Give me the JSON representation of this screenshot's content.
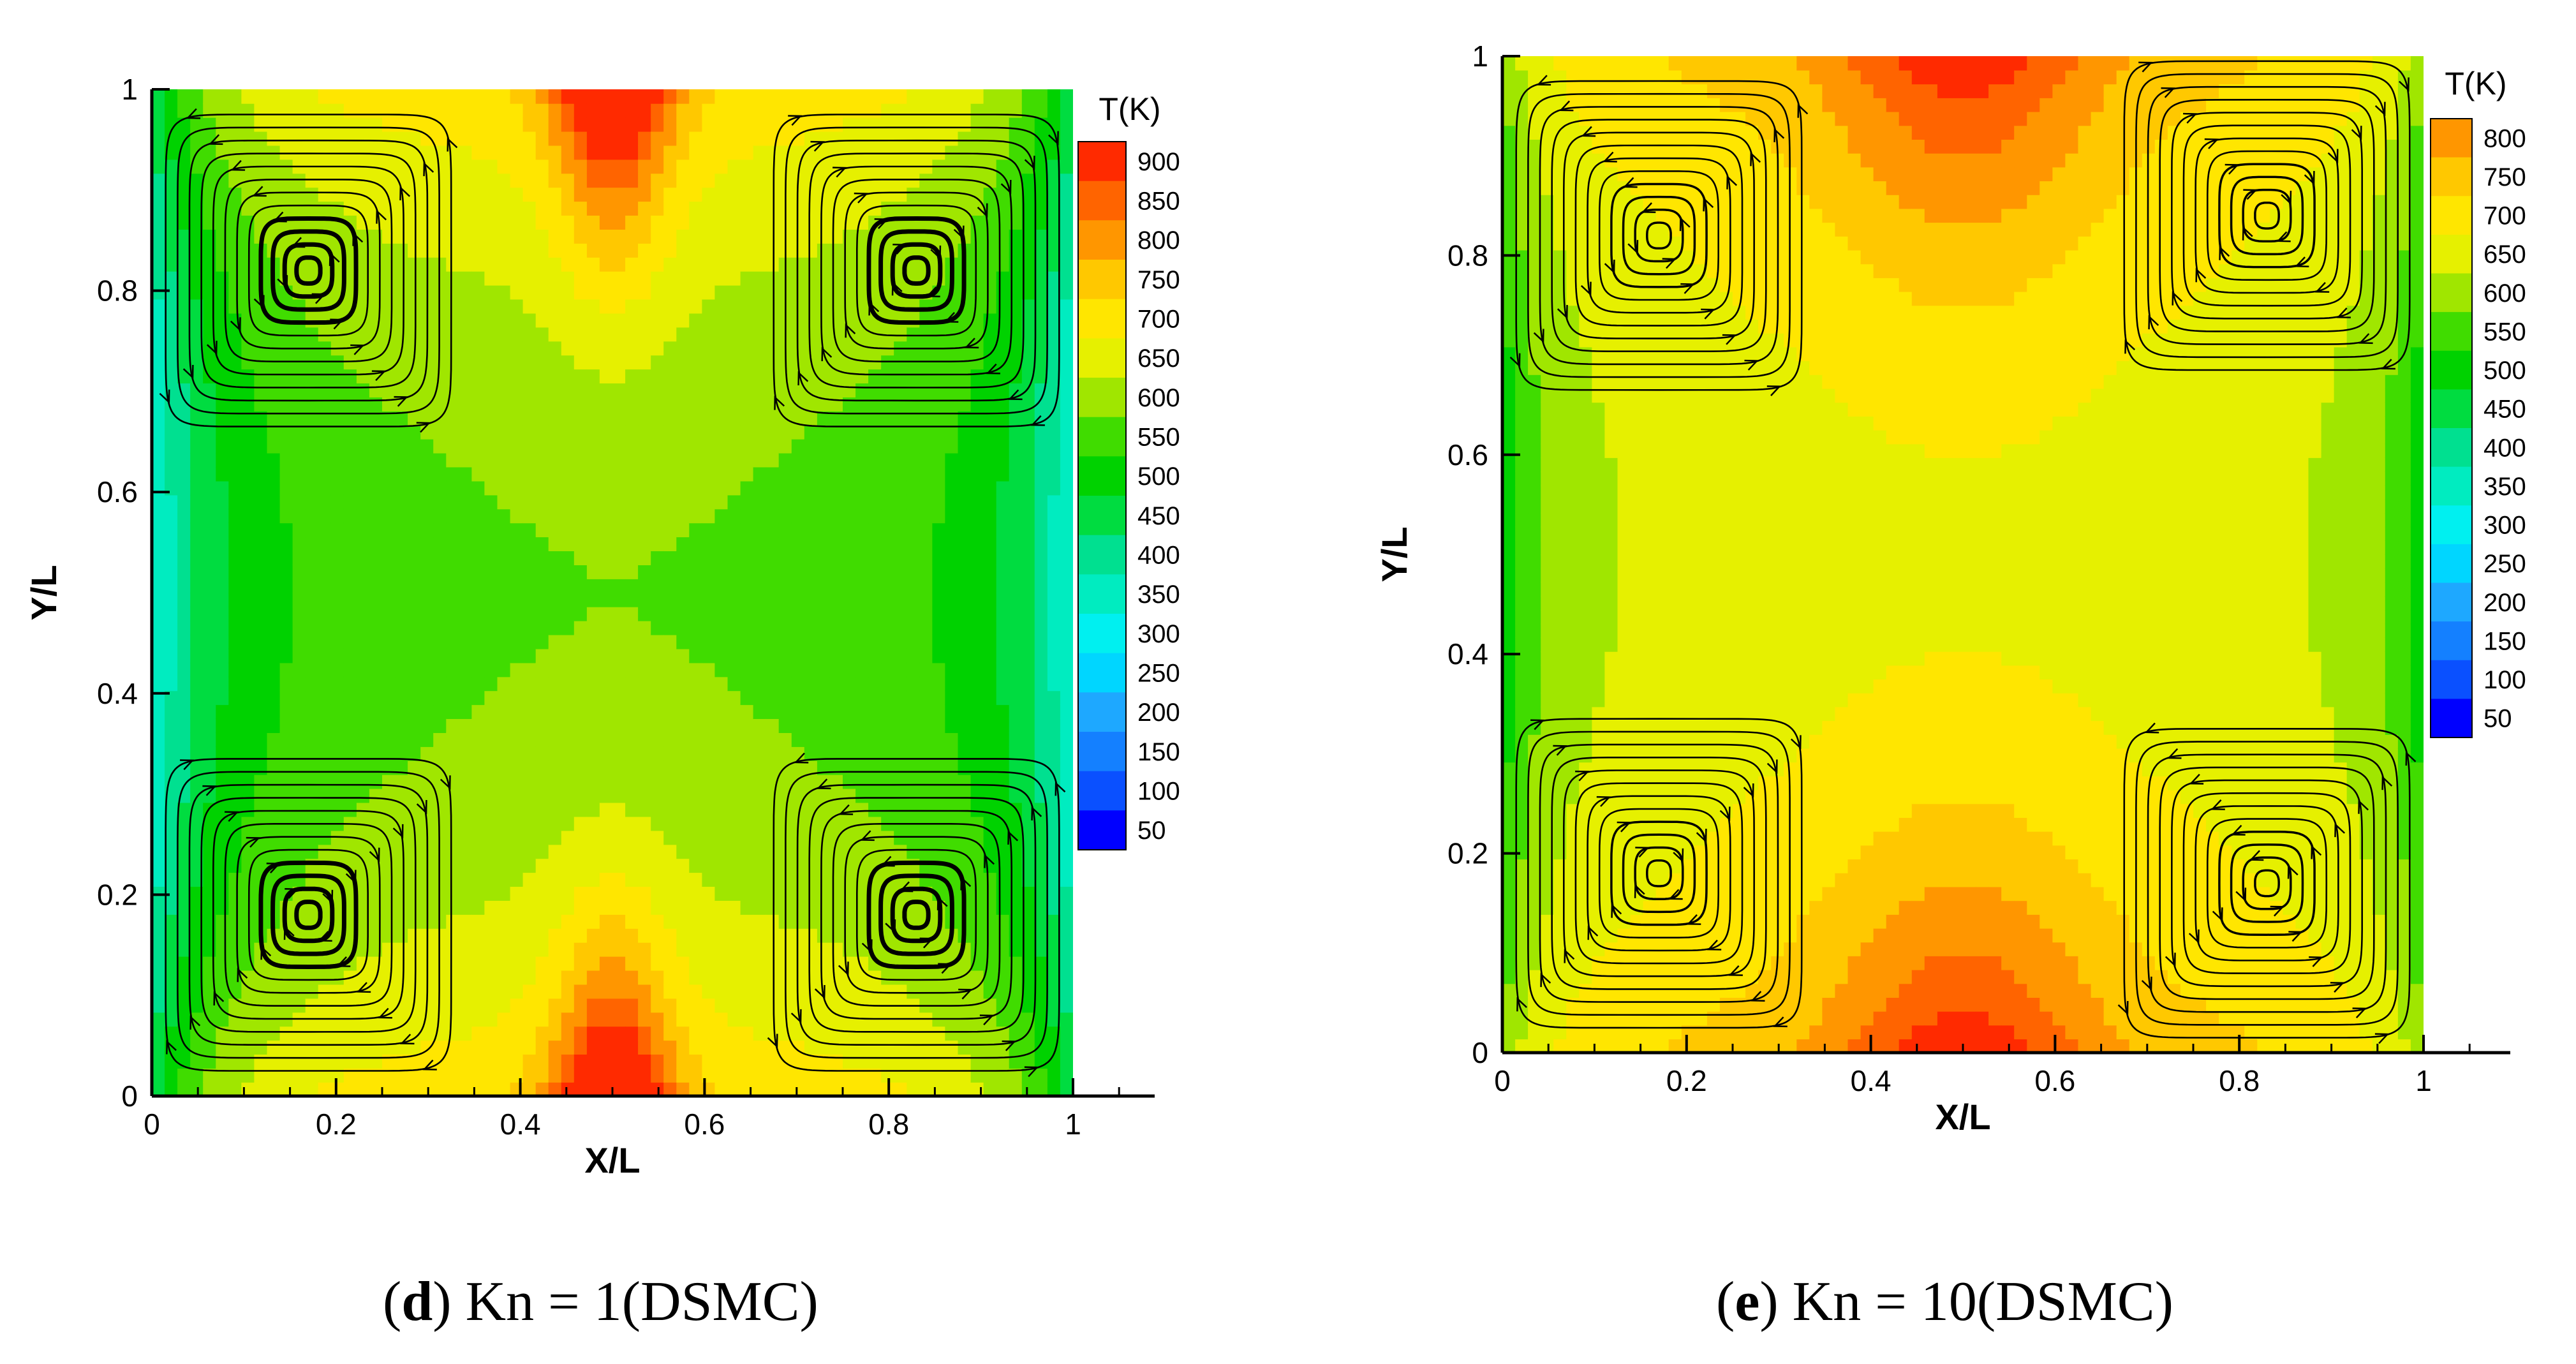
{
  "chart_data": [
    {
      "type": "heatmap",
      "subtype": "temperature-contour-with-streamlines",
      "panel_letter": "d",
      "caption_rest": ") Kn = 1(DSMC)",
      "xlabel": "X/L",
      "ylabel": "Y/L",
      "xlim": [
        0,
        1.1
      ],
      "ylim": [
        0,
        1
      ],
      "xticks": [
        "0",
        "0.2",
        "0.4",
        "0.6",
        "0.8",
        "1"
      ],
      "yticks": [
        "0",
        "0.2",
        "0.4",
        "0.6",
        "0.8",
        "1"
      ],
      "colorbar_title": "T(K)",
      "colorbar_levels": [
        "900",
        "850",
        "800",
        "750",
        "700",
        "650",
        "600",
        "550",
        "500",
        "450",
        "400",
        "350",
        "300",
        "250",
        "200",
        "150",
        "100",
        "50"
      ],
      "temperature_range_K": [
        450,
        920
      ],
      "vortex_centers": [
        [
          0.17,
          0.82
        ],
        [
          0.83,
          0.82
        ],
        [
          0.17,
          0.18
        ],
        [
          0.83,
          0.18
        ]
      ]
    },
    {
      "type": "heatmap",
      "subtype": "temperature-contour-with-streamlines",
      "panel_letter": "e",
      "caption_rest": ") Kn = 10(DSMC)",
      "xlabel": "X/L",
      "ylabel": "Y/L",
      "xlim": [
        0,
        1.1
      ],
      "ylim": [
        0,
        1
      ],
      "xticks": [
        "0",
        "0.2",
        "0.4",
        "0.6",
        "0.8",
        "1"
      ],
      "yticks": [
        "0",
        "0.2",
        "0.4",
        "0.6",
        "0.8",
        "1"
      ],
      "colorbar_title": "T(K)",
      "colorbar_levels": [
        "800",
        "750",
        "700",
        "650",
        "600",
        "550",
        "500",
        "450",
        "400",
        "350",
        "300",
        "250",
        "200",
        "150",
        "100",
        "50"
      ],
      "temperature_range_K": [
        560,
        830
      ],
      "vortex_centers": [
        [
          0.17,
          0.82
        ],
        [
          0.83,
          0.84
        ],
        [
          0.17,
          0.18
        ],
        [
          0.83,
          0.17
        ]
      ]
    }
  ],
  "colormap": [
    "#0000ff",
    "#0a50ff",
    "#1480ff",
    "#1ea8ff",
    "#00d6ff",
    "#00f0f0",
    "#00ecc0",
    "#00e090",
    "#00dc40",
    "#00d200",
    "#40dc00",
    "#a0e600",
    "#e6f000",
    "#ffe600",
    "#ffc800",
    "#ff9600",
    "#ff6400",
    "#ff2a00"
  ]
}
